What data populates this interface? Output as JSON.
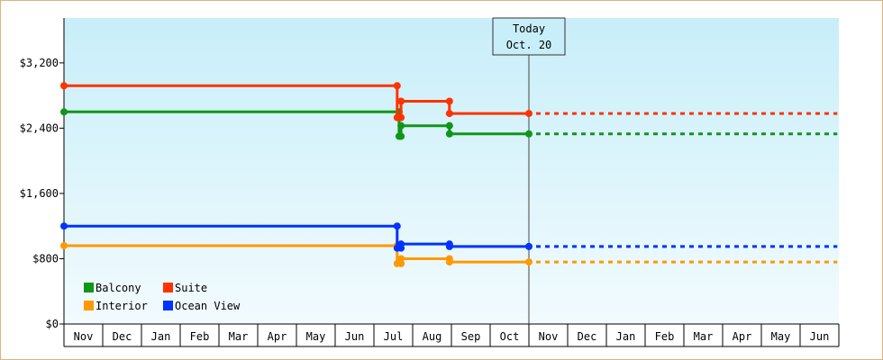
{
  "chart_data": {
    "type": "line",
    "y_ticks": [
      "$0",
      "$800",
      "$1,600",
      "$2,400",
      "$3,200"
    ],
    "y_tick_values": [
      0,
      800,
      1600,
      2400,
      3200
    ],
    "ylim": [
      0,
      3750
    ],
    "month_labels": [
      "Nov",
      "Dec",
      "Jan",
      "Feb",
      "Mar",
      "Apr",
      "May",
      "Jun",
      "Jul",
      "Aug",
      "Sep",
      "Oct",
      "Nov",
      "Dec",
      "Jan",
      "Feb",
      "Mar",
      "Apr",
      "May",
      "Jun"
    ],
    "today_marker": {
      "line1": "Today",
      "line2": "Oct. 20",
      "x": 12.0
    },
    "legend_placement": "bottom-left",
    "series": [
      {
        "name": "Balcony",
        "color": "#109618",
        "points": [
          [
            0,
            2600
          ],
          [
            8.65,
            2600
          ],
          [
            8.65,
            2300
          ],
          [
            8.7,
            2300
          ],
          [
            8.7,
            2430
          ],
          [
            9.95,
            2430
          ],
          [
            9.95,
            2330
          ],
          [
            12.0,
            2330
          ]
        ],
        "markers": [
          [
            0,
            2600
          ],
          [
            8.65,
            2600
          ],
          [
            8.65,
            2300
          ],
          [
            8.7,
            2300
          ],
          [
            8.7,
            2430
          ],
          [
            9.95,
            2430
          ],
          [
            9.95,
            2330
          ],
          [
            12.0,
            2330
          ]
        ],
        "projection": [
          [
            12.0,
            2330
          ],
          [
            19.96,
            2330
          ]
        ]
      },
      {
        "name": "Suite",
        "color": "#ff3300",
        "points": [
          [
            0,
            2920
          ],
          [
            8.6,
            2920
          ],
          [
            8.6,
            2530
          ],
          [
            8.7,
            2530
          ],
          [
            8.7,
            2730
          ],
          [
            9.95,
            2730
          ],
          [
            9.95,
            2580
          ],
          [
            12.0,
            2580
          ]
        ],
        "markers": [
          [
            0,
            2920
          ],
          [
            8.6,
            2920
          ],
          [
            8.6,
            2530
          ],
          [
            8.7,
            2530
          ],
          [
            8.7,
            2730
          ],
          [
            9.95,
            2730
          ],
          [
            9.95,
            2580
          ],
          [
            12.0,
            2580
          ]
        ],
        "projection": [
          [
            12.0,
            2580
          ],
          [
            19.96,
            2580
          ]
        ]
      },
      {
        "name": "Interior",
        "color": "#ff9900",
        "points": [
          [
            0,
            960
          ],
          [
            8.6,
            960
          ],
          [
            8.6,
            740
          ],
          [
            8.7,
            740
          ],
          [
            8.7,
            800
          ],
          [
            9.95,
            800
          ],
          [
            9.95,
            760
          ],
          [
            12.0,
            760
          ]
        ],
        "markers": [
          [
            0,
            960
          ],
          [
            8.6,
            960
          ],
          [
            8.6,
            740
          ],
          [
            8.7,
            740
          ],
          [
            8.7,
            800
          ],
          [
            9.95,
            800
          ],
          [
            9.95,
            760
          ],
          [
            12.0,
            760
          ]
        ],
        "projection": [
          [
            12.0,
            760
          ],
          [
            19.96,
            760
          ]
        ]
      },
      {
        "name": "Ocean View",
        "color": "#0033ff",
        "points": [
          [
            0,
            1200
          ],
          [
            8.6,
            1200
          ],
          [
            8.6,
            930
          ],
          [
            8.7,
            930
          ],
          [
            8.7,
            980
          ],
          [
            9.95,
            980
          ],
          [
            9.95,
            950
          ],
          [
            12.0,
            950
          ]
        ],
        "markers": [
          [
            0,
            1200
          ],
          [
            8.6,
            1200
          ],
          [
            8.6,
            930
          ],
          [
            8.7,
            930
          ],
          [
            8.7,
            980
          ],
          [
            9.95,
            980
          ],
          [
            9.95,
            950
          ],
          [
            12.0,
            950
          ]
        ],
        "projection": [
          [
            12.0,
            950
          ],
          [
            19.96,
            950
          ]
        ]
      }
    ],
    "legend_order": [
      "Balcony",
      "Suite",
      "Interior",
      "Ocean View"
    ],
    "colors": {
      "plot_top": "#c8eef9",
      "plot_bottom": "#f2fbfe",
      "frame_border": "#e2b27a"
    }
  }
}
